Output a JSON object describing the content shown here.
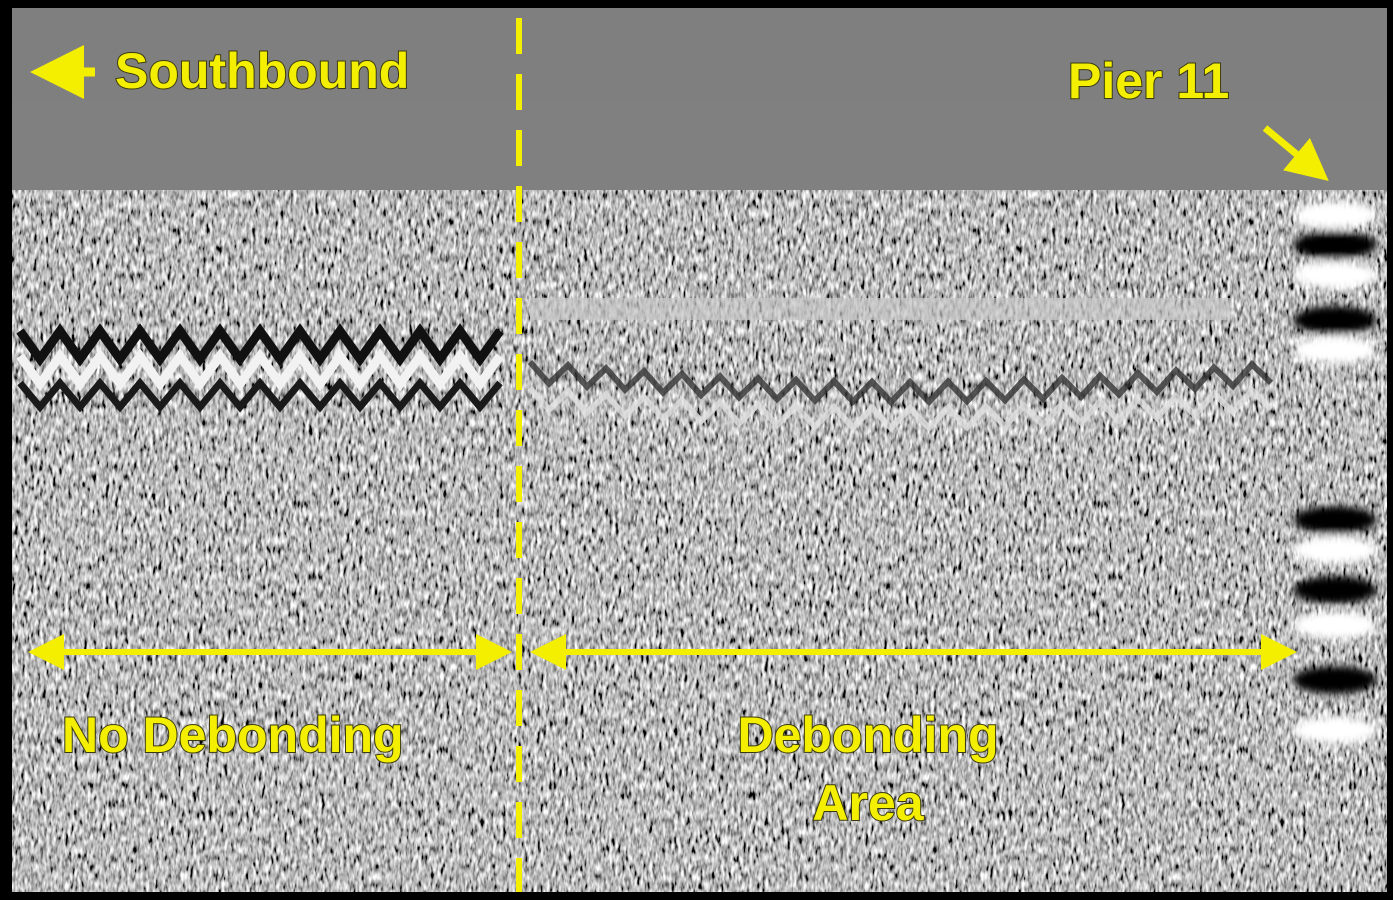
{
  "annotations": {
    "direction": "Southbound",
    "landmark": "Pier 11",
    "left_region": "No Debonding",
    "right_region": [
      "Debonding",
      "Area"
    ]
  }
}
